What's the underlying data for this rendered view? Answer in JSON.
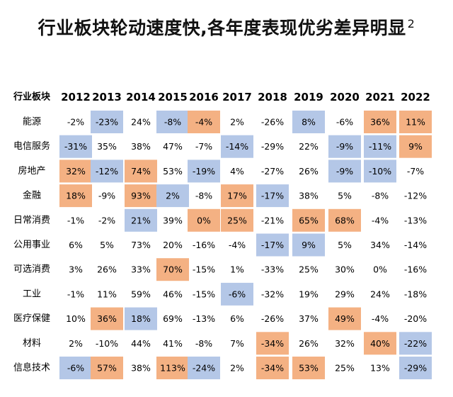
{
  "title": "行业板块轮动速度快,各年度表现优劣差异明显",
  "title_superscript": "2",
  "colors": {
    "high": "#f4b183",
    "low": "#b4c7e7",
    "text": "#111111",
    "background": "#ffffff"
  },
  "chart_data": {
    "type": "heatmap",
    "row_header": "行业板块",
    "columns": [
      "2012",
      "2013",
      "2014",
      "2015",
      "2016",
      "2017",
      "2018",
      "2019",
      "2020",
      "2021",
      "2022"
    ],
    "rows": [
      {
        "name": "能源",
        "values": [
          "-2%",
          "-23%",
          "24%",
          "-8%",
          "-4%",
          "2%",
          "-26%",
          "8%",
          "-6%",
          "36%",
          "11%"
        ],
        "highlight": [
          "",
          "low",
          "",
          "low",
          "high",
          "",
          "",
          "low",
          "",
          "high",
          "high"
        ]
      },
      {
        "name": "电信服务",
        "values": [
          "-31%",
          "35%",
          "38%",
          "47%",
          "-7%",
          "-14%",
          "-29%",
          "22%",
          "-9%",
          "-11%",
          "9%"
        ],
        "highlight": [
          "low",
          "",
          "",
          "",
          "",
          "low",
          "",
          "",
          "low",
          "low",
          "high"
        ]
      },
      {
        "name": "房地产",
        "values": [
          "32%",
          "-12%",
          "74%",
          "53%",
          "-19%",
          "4%",
          "-27%",
          "26%",
          "-9%",
          "-10%",
          "-7%"
        ],
        "highlight": [
          "high",
          "low",
          "high",
          "",
          "low",
          "",
          "",
          "",
          "low",
          "low",
          ""
        ]
      },
      {
        "name": "金融",
        "values": [
          "18%",
          "-9%",
          "93%",
          "2%",
          "-8%",
          "17%",
          "-17%",
          "38%",
          "5%",
          "-8%",
          "-12%"
        ],
        "highlight": [
          "high",
          "",
          "high",
          "low",
          "",
          "high",
          "low",
          "",
          "",
          "",
          ""
        ]
      },
      {
        "name": "日常消费",
        "values": [
          "-1%",
          "-2%",
          "21%",
          "39%",
          "0%",
          "25%",
          "-21%",
          "65%",
          "68%",
          "-4%",
          "-13%"
        ],
        "highlight": [
          "",
          "",
          "low",
          "",
          "high",
          "high",
          "",
          "high",
          "high",
          "",
          ""
        ]
      },
      {
        "name": "公用事业",
        "values": [
          "6%",
          "5%",
          "73%",
          "20%",
          "-16%",
          "-4%",
          "-17%",
          "9%",
          "5%",
          "34%",
          "-14%"
        ],
        "highlight": [
          "",
          "",
          "",
          "",
          "",
          "",
          "low",
          "low",
          "",
          "",
          ""
        ]
      },
      {
        "name": "可选消费",
        "values": [
          "3%",
          "26%",
          "33%",
          "70%",
          "-15%",
          "1%",
          "-33%",
          "25%",
          "30%",
          "0%",
          "-16%"
        ],
        "highlight": [
          "",
          "",
          "",
          "high",
          "",
          "",
          "",
          "",
          "",
          "",
          ""
        ]
      },
      {
        "name": "工业",
        "values": [
          "-1%",
          "11%",
          "59%",
          "46%",
          "-15%",
          "-6%",
          "-32%",
          "19%",
          "29%",
          "24%",
          "-18%"
        ],
        "highlight": [
          "",
          "",
          "",
          "",
          "",
          "low",
          "",
          "",
          "",
          "",
          ""
        ]
      },
      {
        "name": "医疗保健",
        "values": [
          "10%",
          "36%",
          "18%",
          "69%",
          "-13%",
          "6%",
          "-26%",
          "37%",
          "49%",
          "-4%",
          "-20%"
        ],
        "highlight": [
          "",
          "high",
          "low",
          "",
          "",
          "",
          "",
          "",
          "high",
          "",
          ""
        ]
      },
      {
        "name": "材料",
        "values": [
          "2%",
          "-10%",
          "44%",
          "41%",
          "-8%",
          "7%",
          "-34%",
          "26%",
          "32%",
          "40%",
          "-22%"
        ],
        "highlight": [
          "",
          "",
          "",
          "",
          "",
          "",
          "high",
          "",
          "",
          "high",
          "low"
        ]
      },
      {
        "name": "信息技术",
        "values": [
          "-6%",
          "57%",
          "38%",
          "113%",
          "-24%",
          "2%",
          "-34%",
          "53%",
          "25%",
          "13%",
          "-29%"
        ],
        "highlight": [
          "low",
          "high",
          "",
          "high",
          "low",
          "",
          "high",
          "high",
          "",
          "",
          "low"
        ]
      }
    ]
  }
}
